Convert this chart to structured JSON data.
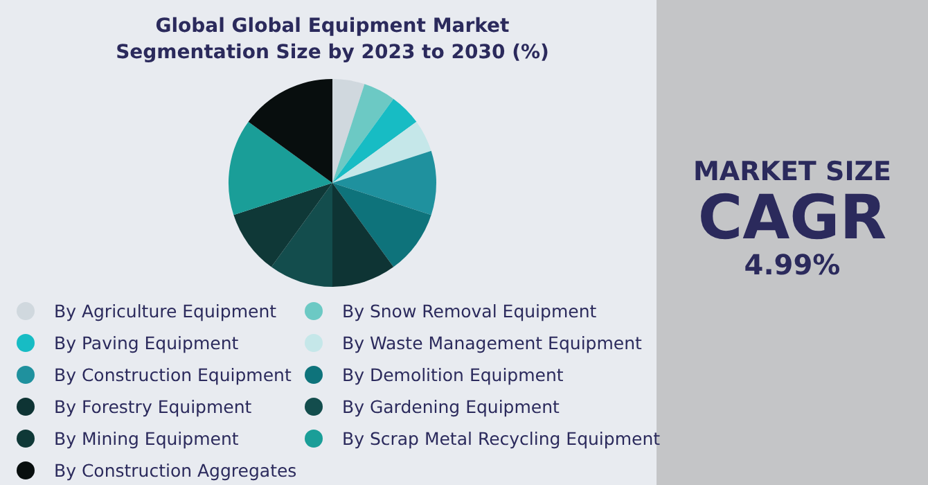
{
  "chart_data": {
    "type": "pie",
    "title": "Global Global Equipment Market Segmentation Size by 2023 to 2030 (%)",
    "categories": [
      "By Agriculture Equipment",
      "By Snow Removal Equipment",
      "By Paving Equipment",
      "By Waste Management Equipment",
      "By Construction Equipment",
      "By Demolition Equipment",
      "By Forestry Equipment",
      "By Gardening Equipment",
      "By Mining Equipment",
      "By Scrap Metal Recycling Equipment",
      "By Construction Aggregates"
    ],
    "values": [
      5,
      5,
      5,
      5,
      10,
      10,
      10,
      10,
      10,
      15,
      15
    ],
    "colors": [
      "#d0d8de",
      "#6cc9c4",
      "#17bcc4",
      "#c5e7e9",
      "#1f919e",
      "#0e737b",
      "#0e3434",
      "#134d4d",
      "#0f3837",
      "#1a9e98",
      "#080e0e"
    ],
    "legend": "bottom",
    "annotations": [
      "MARKET SIZE",
      "CAGR",
      "4.99%"
    ]
  }
}
